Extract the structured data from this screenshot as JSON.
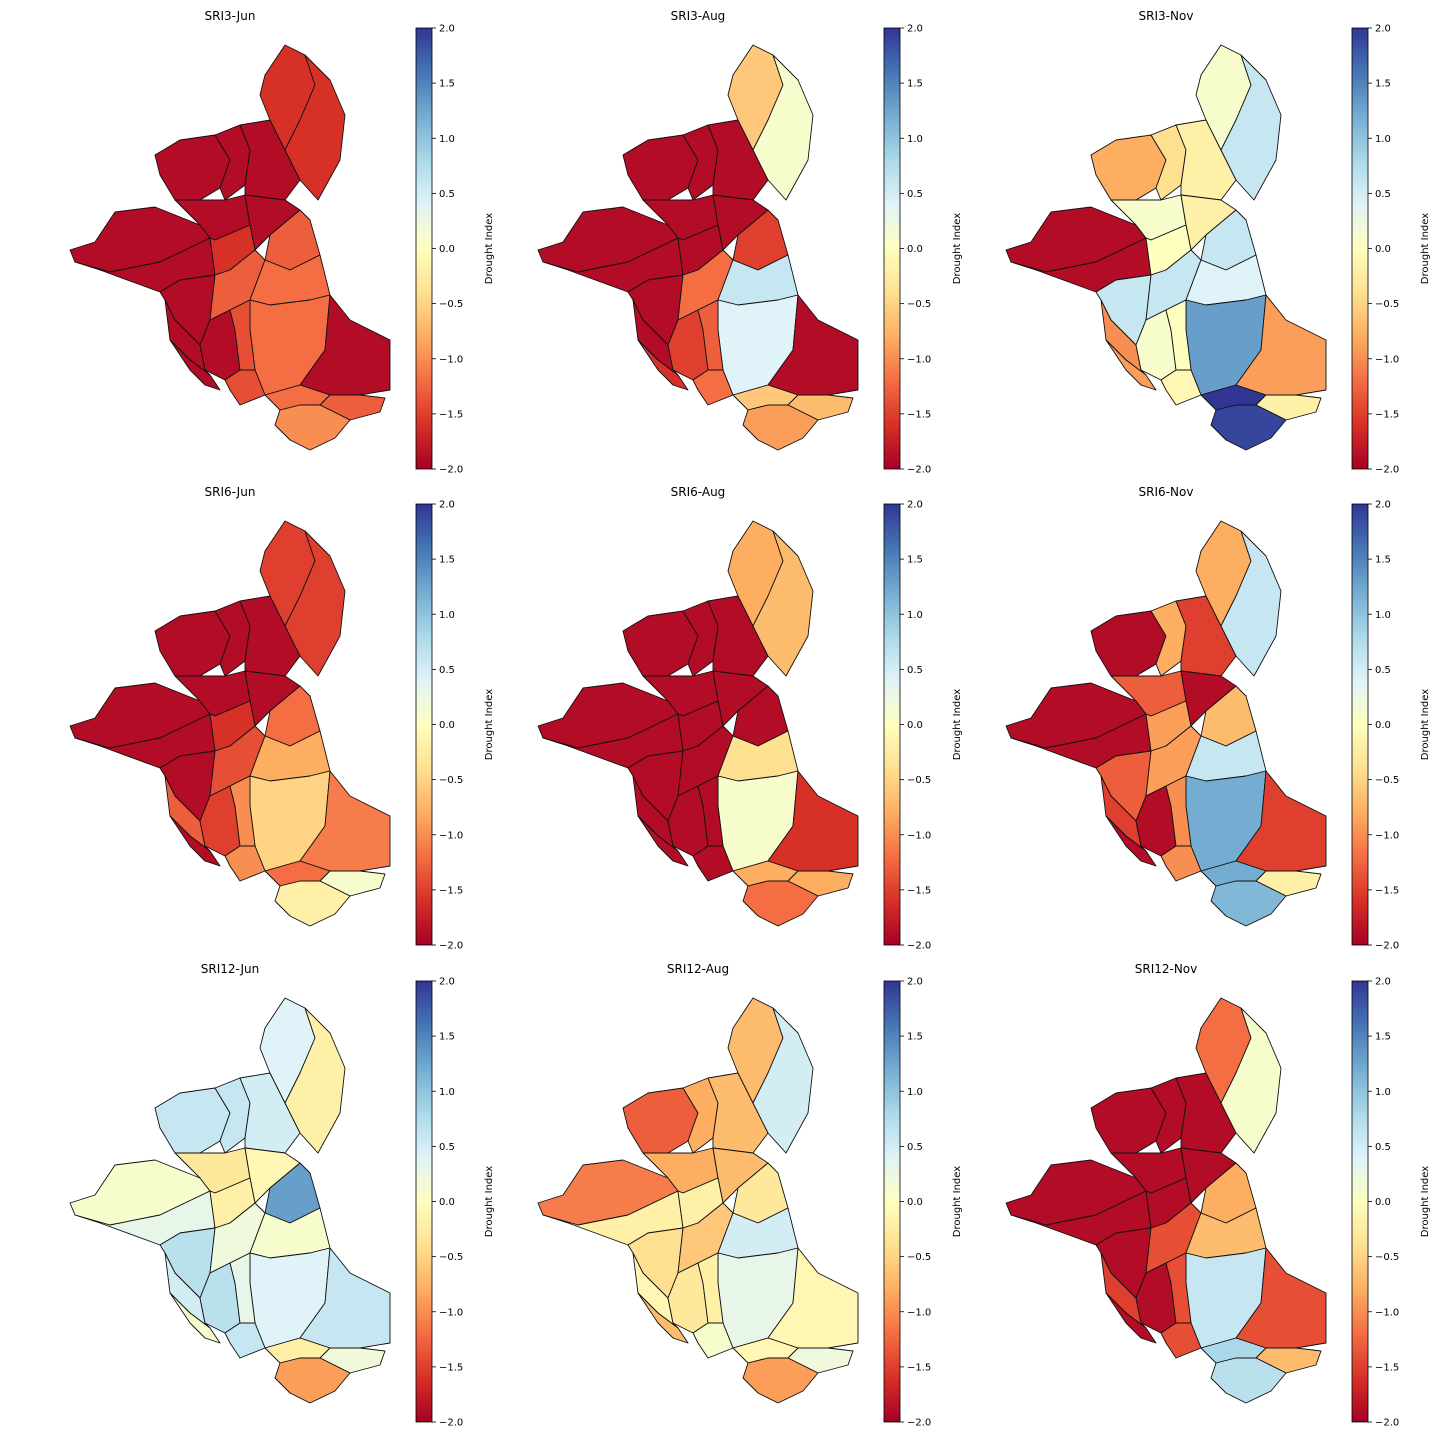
{
  "colorbar": {
    "label": "Drought Index",
    "range": [
      -2.0,
      2.0
    ],
    "ticks": [
      "2.0",
      "1.5",
      "1.0",
      "0.5",
      "0.0",
      "−0.5",
      "−1.0",
      "−1.5",
      "−2.0"
    ],
    "colormap": "RdYlBu",
    "stops": [
      "#a50026",
      "#d73027",
      "#f46d43",
      "#fdae61",
      "#fee090",
      "#ffffbf",
      "#e0f3f8",
      "#abd9e9",
      "#74add1",
      "#4575b4",
      "#313695"
    ]
  },
  "panels": [
    {
      "title": "SRI3-Jun",
      "values": [
        -1.9,
        -1.9,
        -1.9,
        -1.9,
        -1.9,
        -1.6,
        -1.6,
        -1.9,
        -1.9,
        -1.6,
        -1.9,
        -1.3,
        -1.3,
        -1.2,
        -1.2,
        -1.9,
        -1.9,
        -1.9,
        -1.4,
        -1.9,
        -1.4,
        -1.2,
        -1.3,
        -1.0
      ]
    },
    {
      "title": "SRI3-Aug",
      "values": [
        -1.9,
        -1.9,
        -1.9,
        -1.9,
        -1.9,
        -0.6,
        0.1,
        -1.9,
        -1.9,
        -1.9,
        -1.9,
        -1.2,
        -1.5,
        0.6,
        0.4,
        -1.9,
        -1.9,
        -1.5,
        -1.3,
        -1.6,
        -1.2,
        -0.6,
        -0.7,
        -0.9
      ]
    },
    {
      "title": "SRI3-Nov",
      "values": [
        -1.9,
        -1.9,
        -0.8,
        -0.4,
        -0.2,
        0.1,
        0.6,
        0.1,
        -0.2,
        0.0,
        0.6,
        0.6,
        0.6,
        0.4,
        1.3,
        -0.9,
        -1.0,
        0.1,
        0.0,
        -0.9,
        -0.1,
        2.0,
        -0.2,
        1.9
      ]
    },
    {
      "title": "SRI6-Jun",
      "values": [
        -1.9,
        -1.9,
        -1.9,
        -1.9,
        -1.9,
        -1.5,
        -1.5,
        -1.9,
        -1.9,
        -1.6,
        -1.9,
        -1.4,
        -1.2,
        -0.8,
        -0.5,
        -1.1,
        -1.3,
        -1.5,
        -1.0,
        -1.9,
        -1.0,
        -1.2,
        0.1,
        -0.2
      ]
    },
    {
      "title": "SRI6-Aug",
      "values": [
        -1.9,
        -1.9,
        -1.9,
        -1.9,
        -1.9,
        -0.8,
        -0.7,
        -1.9,
        -1.9,
        -1.9,
        -1.9,
        -1.9,
        -1.9,
        -0.4,
        0.1,
        -1.6,
        -1.9,
        -1.9,
        -1.9,
        -1.9,
        -1.9,
        -0.8,
        -0.8,
        -1.2
      ]
    },
    {
      "title": "SRI6-Nov",
      "values": [
        -1.9,
        -1.9,
        -1.9,
        -0.8,
        -1.5,
        -0.8,
        0.6,
        -1.3,
        -1.9,
        -0.9,
        -1.3,
        -0.9,
        -0.7,
        0.6,
        1.2,
        -1.5,
        -1.5,
        -1.9,
        -1.0,
        -1.9,
        -1.0,
        1.2,
        -0.2,
        1.1
      ]
    },
    {
      "title": "SRI12-Jun",
      "values": [
        0.1,
        0.3,
        0.6,
        0.6,
        0.5,
        0.4,
        -0.2,
        -0.3,
        -0.1,
        -0.2,
        0.7,
        0.2,
        1.3,
        0.1,
        0.4,
        0.6,
        0.5,
        0.7,
        0.3,
        0.1,
        0.6,
        -0.2,
        0.2,
        -0.9
      ]
    },
    {
      "title": "SRI12-Aug",
      "values": [
        -1.1,
        -0.2,
        -1.3,
        -0.8,
        -0.7,
        -0.7,
        0.5,
        -0.8,
        -0.7,
        -0.2,
        -0.4,
        -0.6,
        -0.3,
        0.5,
        0.3,
        -0.1,
        -0.1,
        -0.3,
        -0.2,
        -0.7,
        0.1,
        -0.1,
        0.2,
        -0.9
      ]
    },
    {
      "title": "SRI12-Nov",
      "values": [
        -1.9,
        -1.9,
        -1.9,
        -1.9,
        -1.9,
        -1.2,
        0.1,
        -1.9,
        -1.9,
        -1.9,
        -1.9,
        -1.4,
        -0.8,
        -0.7,
        0.6,
        -1.4,
        -1.5,
        -1.9,
        -1.4,
        -1.9,
        -1.4,
        0.8,
        -0.7,
        0.7
      ]
    }
  ]
}
